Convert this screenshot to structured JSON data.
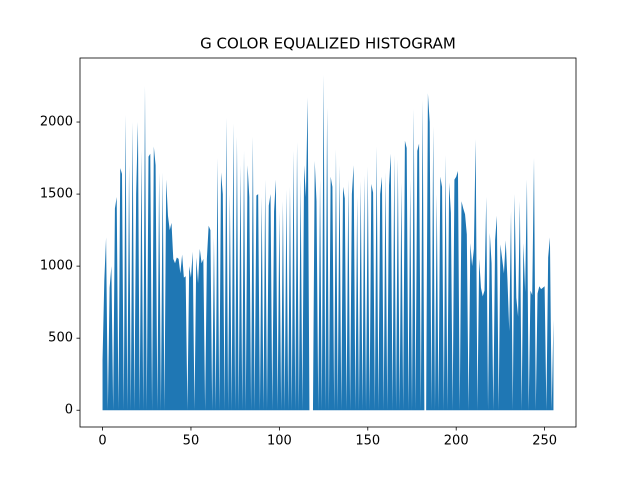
{
  "chart_data": {
    "type": "area",
    "title": "G COLOR EQUALIZED HISTOGRAM",
    "color": "#1f77b4",
    "x": [
      0,
      1,
      2,
      3,
      4,
      5,
      6,
      7,
      8,
      9,
      10,
      11,
      12,
      13,
      14,
      15,
      16,
      17,
      18,
      19,
      20,
      21,
      22,
      23,
      24,
      25,
      26,
      27,
      28,
      29,
      30,
      31,
      32,
      33,
      34,
      35,
      36,
      37,
      38,
      39,
      40,
      41,
      42,
      43,
      44,
      45,
      46,
      47,
      48,
      49,
      50,
      51,
      52,
      53,
      54,
      55,
      56,
      57,
      58,
      59,
      60,
      61,
      62,
      63,
      64,
      65,
      66,
      67,
      68,
      69,
      70,
      71,
      72,
      73,
      74,
      75,
      76,
      77,
      78,
      79,
      80,
      81,
      82,
      83,
      84,
      85,
      86,
      87,
      88,
      89,
      90,
      91,
      92,
      93,
      94,
      95,
      96,
      97,
      98,
      99,
      100,
      101,
      102,
      103,
      104,
      105,
      106,
      107,
      108,
      109,
      110,
      111,
      112,
      113,
      114,
      115,
      116,
      117,
      118,
      119,
      120,
      121,
      122,
      123,
      124,
      125,
      126,
      127,
      128,
      129,
      130,
      131,
      132,
      133,
      134,
      135,
      136,
      137,
      138,
      139,
      140,
      141,
      142,
      143,
      144,
      145,
      146,
      147,
      148,
      149,
      150,
      151,
      152,
      153,
      154,
      155,
      156,
      157,
      158,
      159,
      160,
      161,
      162,
      163,
      164,
      165,
      166,
      167,
      168,
      169,
      170,
      171,
      172,
      173,
      174,
      175,
      176,
      177,
      178,
      179,
      180,
      181,
      182,
      183,
      184,
      185,
      186,
      187,
      188,
      189,
      190,
      191,
      192,
      193,
      194,
      195,
      196,
      197,
      198,
      199,
      200,
      201,
      202,
      203,
      204,
      205,
      206,
      207,
      208,
      209,
      210,
      211,
      212,
      213,
      214,
      215,
      216,
      217,
      218,
      219,
      220,
      221,
      222,
      223,
      224,
      225,
      226,
      227,
      228,
      229,
      230,
      231,
      232,
      233,
      234,
      235,
      236,
      237,
      238,
      239,
      240,
      241,
      242,
      243,
      244,
      245,
      246,
      247,
      248,
      249,
      250,
      251,
      252,
      253,
      254,
      255
    ],
    "values": [
      350,
      900,
      1200,
      0,
      850,
      1000,
      0,
      1400,
      1480,
      0,
      1680,
      1640,
      0,
      2050,
      0,
      1700,
      0,
      2000,
      0,
      1500,
      2000,
      0,
      1800,
      0,
      2250,
      0,
      1760,
      1780,
      0,
      1830,
      1700,
      0,
      1650,
      0,
      1650,
      0,
      1600,
      1350,
      1250,
      1300,
      1050,
      1020,
      1060,
      1050,
      950,
      1080,
      920,
      930,
      0,
      1000,
      920,
      1100,
      0,
      1060,
      880,
      1120,
      1020,
      1050,
      0,
      1050,
      1280,
      1250,
      0,
      1200,
      0,
      1750,
      0,
      1650,
      1500,
      0,
      2030,
      0,
      1500,
      0,
      1990,
      0,
      1900,
      0,
      1700,
      0,
      1800,
      0,
      1700,
      1480,
      0,
      1900,
      0,
      1490,
      1500,
      0,
      1480,
      0,
      1600,
      0,
      1420,
      1500,
      0,
      1380,
      1600,
      0,
      1380,
      0,
      1450,
      0,
      1530,
      0,
      1550,
      0,
      1800,
      0,
      1860,
      0,
      1600,
      0,
      1700,
      1480,
      2170,
      0,
      0,
      0,
      1730,
      1450,
      0,
      1600,
      0,
      2328,
      0,
      2100,
      0,
      1620,
      1550,
      0,
      1810,
      0,
      1700,
      0,
      1550,
      1470,
      0,
      1600,
      0,
      1500,
      1700,
      0,
      1480,
      0,
      1590,
      0,
      1630,
      0,
      1690,
      0,
      1570,
      1510,
      0,
      1830,
      0,
      1500,
      1620,
      0,
      1650,
      0,
      1560,
      1780,
      0,
      1770,
      0,
      1740,
      0,
      1580,
      0,
      1870,
      1820,
      0,
      1600,
      0,
      2090,
      0,
      1800,
      1850,
      0,
      2150,
      0,
      0,
      2200,
      2000,
      0,
      1970,
      0,
      1500,
      0,
      1620,
      1550,
      0,
      1770,
      0,
      1580,
      1370,
      0,
      1600,
      1620,
      1660,
      0,
      1450,
      1400,
      1360,
      1220,
      0,
      1160,
      1000,
      1120,
      1880,
      0,
      1050,
      850,
      790,
      830,
      1480,
      0,
      1230,
      1020,
      0,
      1180,
      1350,
      0,
      1150,
      1050,
      950,
      1180,
      900,
      550,
      1380,
      0,
      1500,
      780,
      650,
      1450,
      0,
      1160,
      820,
      1600,
      0,
      830,
      800,
      1750,
      0,
      810,
      860,
      840,
      850,
      860,
      0,
      1060,
      1200,
      0,
      630
    ],
    "xlim": [
      -12.75,
      267.75
    ],
    "ylim": [
      -116.4,
      2444.4
    ],
    "xticks": [
      0,
      50,
      100,
      150,
      200,
      250
    ],
    "yticks": [
      0,
      500,
      1000,
      1500,
      2000
    ]
  }
}
